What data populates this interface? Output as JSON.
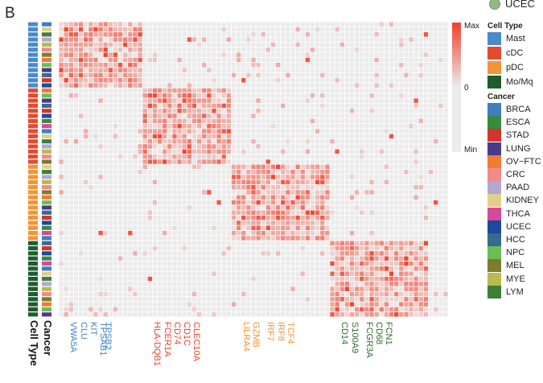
{
  "panel_letter": "B",
  "top_legend_fragment": "UCEC",
  "chart_data": {
    "type": "heatmap",
    "title": "",
    "color_scale": {
      "max_label": "Max",
      "mid_label": "0",
      "min_label": "Min",
      "low_color": "#ebebeb",
      "high_color": "#f04430"
    },
    "row_annotation_labels": [
      "Cancer",
      "Cell Type"
    ],
    "n_rows": 58,
    "n_cols": 79,
    "legends": {
      "cell_type": {
        "title": "Cell Type",
        "items": [
          {
            "label": "Mast",
            "color": "#4a8ac9"
          },
          {
            "label": "cDC",
            "color": "#e64a2e"
          },
          {
            "label": "pDC",
            "color": "#f39437"
          },
          {
            "label": "Mo/Mq",
            "color": "#1f5c2e"
          }
        ]
      },
      "cancer": {
        "title": "Cancer",
        "items": [
          {
            "label": "BRCA",
            "color": "#3d7fbf"
          },
          {
            "label": "ESCA",
            "color": "#3a8a3c"
          },
          {
            "label": "STAD",
            "color": "#d4342a"
          },
          {
            "label": "LUNG",
            "color": "#4a3a8f"
          },
          {
            "label": "OV−FTC",
            "color": "#f07c32"
          },
          {
            "label": "CRC",
            "color": "#ef8b8b"
          },
          {
            "label": "PAAD",
            "color": "#b3a7d4"
          },
          {
            "label": "KIDNEY",
            "color": "#e2cf8a"
          },
          {
            "label": "THCA",
            "color": "#d9479a"
          },
          {
            "label": "UCEC",
            "color": "#1c4a9e"
          },
          {
            "label": "HCC",
            "color": "#3a6a8c"
          },
          {
            "label": "NPC",
            "color": "#6bbf52"
          },
          {
            "label": "MEL",
            "color": "#7d7a32"
          },
          {
            "label": "MYE",
            "color": "#b8bb4d"
          },
          {
            "label": "LYM",
            "color": "#3f7f3a"
          }
        ]
      }
    },
    "gene_groups": [
      {
        "cell_type": "Mast",
        "color": "#3f7fc0",
        "genes": [
          "VWA5A",
          "CLU",
          "KIT",
          "TPSAB1",
          "TPSB2"
        ]
      },
      {
        "cell_type": "cDC",
        "color": "#e2442c",
        "genes": [
          "HLA-DQB1",
          "FCER1A",
          "CD74",
          "CD1C",
          "CLEC10A"
        ]
      },
      {
        "cell_type": "pDC",
        "color": "#f09030",
        "genes": [
          "LILRA4",
          "GZMB",
          "IRF7",
          "IRF8",
          "TCF4"
        ]
      },
      {
        "cell_type": "Mo/Mq",
        "color": "#2d6b2d",
        "genes": [
          "CD14",
          "S100A9",
          "FCGR3A",
          "CD68",
          "FCN1"
        ]
      }
    ],
    "blocks": [
      {
        "cell_type": "Mast",
        "row_count": 13,
        "col_count": 17
      },
      {
        "cell_type": "cDC",
        "row_count": 15,
        "col_count": 18
      },
      {
        "cell_type": "pDC",
        "row_count": 15,
        "col_count": 20
      },
      {
        "cell_type": "Mo/Mq",
        "row_count": 15,
        "col_count": 20
      }
    ]
  }
}
